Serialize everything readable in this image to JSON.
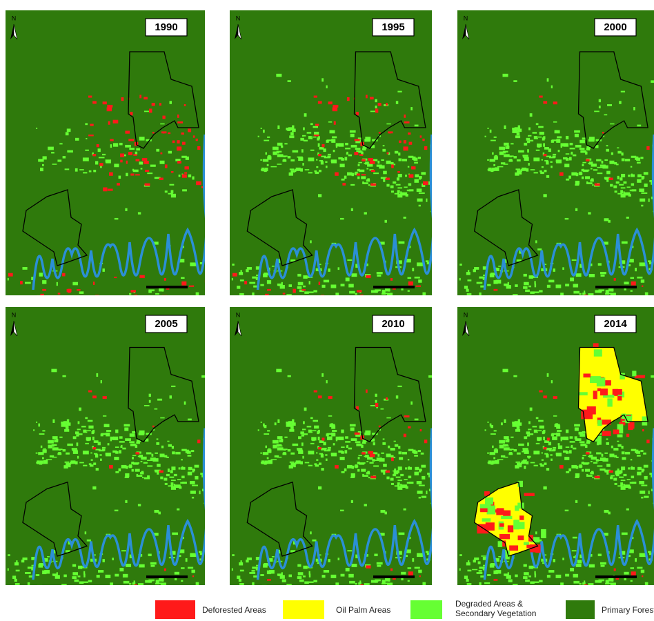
{
  "north_label": "N",
  "panels": [
    {
      "year": "1990"
    },
    {
      "year": "1995"
    },
    {
      "year": "2000"
    },
    {
      "year": "2005"
    },
    {
      "year": "2010"
    },
    {
      "year": "2014"
    }
  ],
  "legend": [
    {
      "label": [
        "Deforested Areas"
      ],
      "color": "#ff1a1a"
    },
    {
      "label": [
        "Oil Palm Areas"
      ],
      "color": "#ffff00"
    },
    {
      "label": [
        "Degraded Areas &",
        "Secondary Vegetation"
      ],
      "color": "#66ff33"
    },
    {
      "label": [
        "Primary Forest"
      ],
      "color": "#2f7a0c"
    }
  ]
}
